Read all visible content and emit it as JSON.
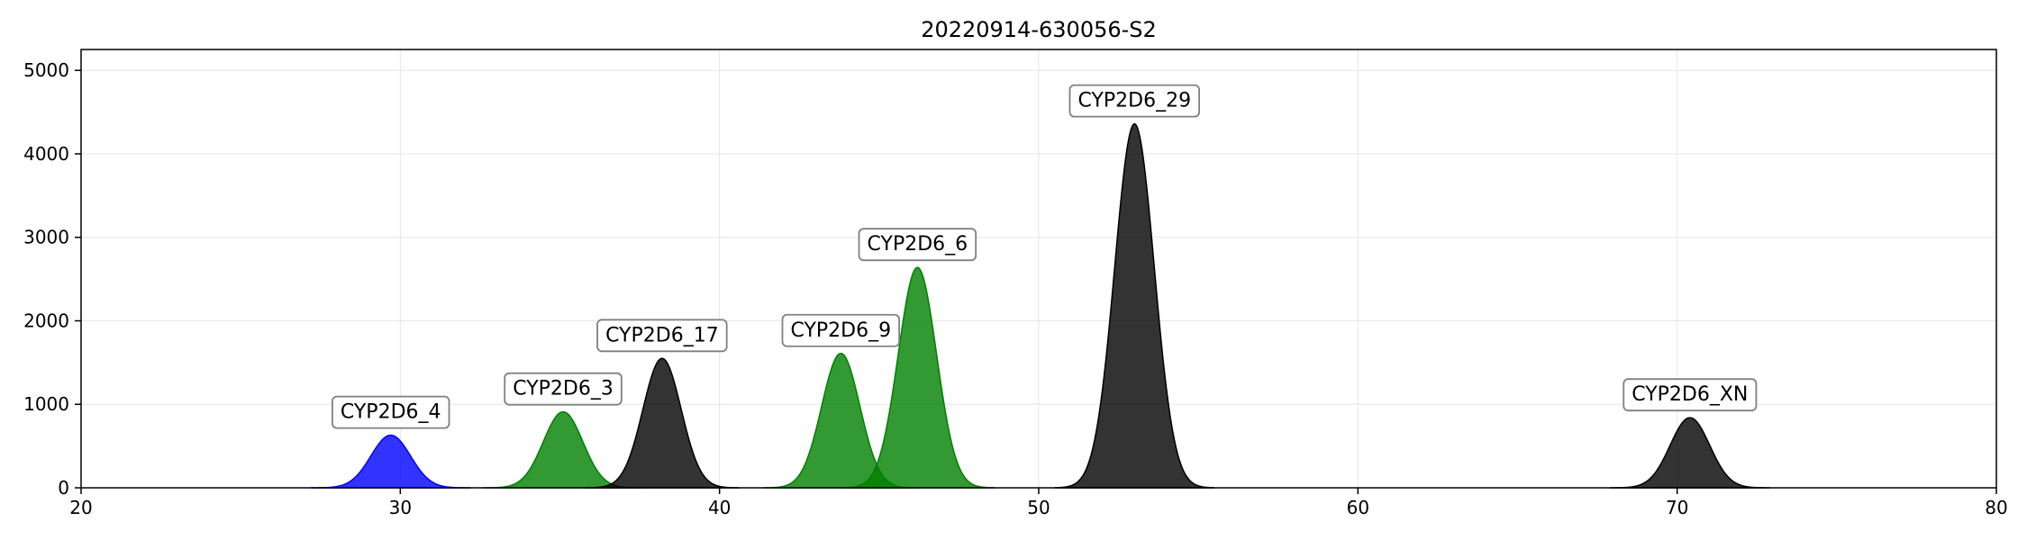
{
  "chart_data": {
    "type": "area",
    "title": "20220914-630056-S2",
    "xlabel": "",
    "ylabel": "",
    "xlim": [
      20,
      80
    ],
    "ylim": [
      0,
      5250
    ],
    "xticks": [
      20,
      30,
      40,
      50,
      60,
      70,
      80
    ],
    "yticks": [
      0,
      1000,
      2000,
      3000,
      4000,
      5000
    ],
    "grid": true,
    "peaks": [
      {
        "label": "CYP2D6_4",
        "center": 29.7,
        "height": 630,
        "sigma": 0.62,
        "color": "#0000ff",
        "label_y": 920
      },
      {
        "label": "CYP2D6_3",
        "center": 35.1,
        "height": 910,
        "sigma": 0.62,
        "color": "#008000",
        "label_y": 1200
      },
      {
        "label": "CYP2D6_17",
        "center": 38.2,
        "height": 1550,
        "sigma": 0.6,
        "color": "#000000",
        "label_y": 1840
      },
      {
        "label": "CYP2D6_9",
        "center": 43.8,
        "height": 1610,
        "sigma": 0.6,
        "color": "#008000",
        "label_y": 1900
      },
      {
        "label": "CYP2D6_6",
        "center": 46.2,
        "height": 2640,
        "sigma": 0.6,
        "color": "#008000",
        "label_y": 2930
      },
      {
        "label": "CYP2D6_29",
        "center": 53.0,
        "height": 4360,
        "sigma": 0.62,
        "color": "#000000",
        "label_y": 4650
      },
      {
        "label": "CYP2D6_XN",
        "center": 70.4,
        "height": 840,
        "sigma": 0.62,
        "color": "#000000",
        "label_y": 1130
      }
    ]
  }
}
